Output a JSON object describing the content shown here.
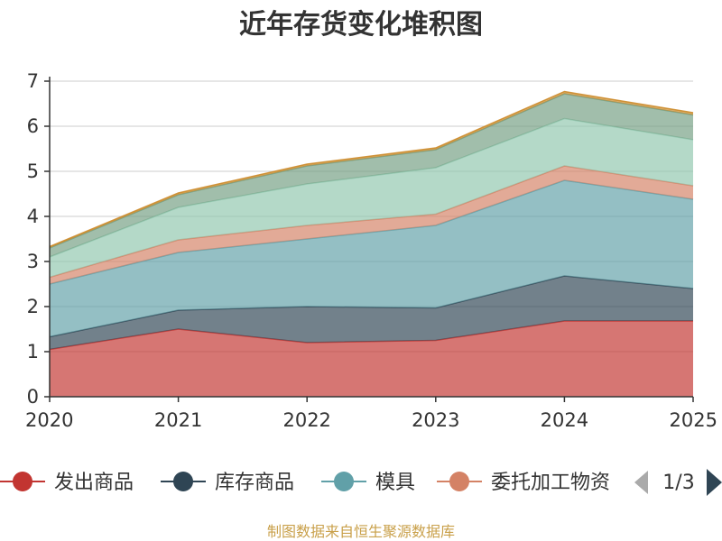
{
  "chart_data": {
    "type": "area",
    "stacked": true,
    "title": "近年存货变化堆积图",
    "x": [
      "2020",
      "2021",
      "2022",
      "2023",
      "2024",
      "2025"
    ],
    "ylim": [
      0,
      7
    ],
    "yticks": [
      "0",
      "1",
      "2",
      "3",
      "4",
      "5",
      "6",
      "7"
    ],
    "grid": true,
    "series": [
      {
        "name": "发出商品",
        "color": "#c23531",
        "values": [
          1.05,
          1.5,
          1.2,
          1.25,
          1.68,
          1.68
        ]
      },
      {
        "name": "库存商品",
        "color": "#2f4554",
        "values": [
          0.28,
          0.42,
          0.8,
          0.72,
          1.0,
          0.72
        ]
      },
      {
        "name": "模具",
        "color": "#61a0a8",
        "values": [
          1.17,
          1.28,
          1.5,
          1.83,
          2.12,
          1.98
        ]
      },
      {
        "name": "委托加工物资",
        "color": "#d48265",
        "values": [
          0.15,
          0.28,
          0.3,
          0.25,
          0.32,
          0.3
        ]
      },
      {
        "color": "#91c7ae",
        "values": [
          0.45,
          0.72,
          0.92,
          1.03,
          1.05,
          1.02
        ]
      },
      {
        "color": "#749f83",
        "values": [
          0.2,
          0.28,
          0.4,
          0.4,
          0.55,
          0.55
        ]
      },
      {
        "color": "#ca8622",
        "values": [
          0.03,
          0.04,
          0.04,
          0.04,
          0.05,
          0.05
        ]
      }
    ],
    "legend": {
      "position": "bottom",
      "page": "1/3"
    },
    "source": "制图数据来自恒生聚源数据库"
  }
}
